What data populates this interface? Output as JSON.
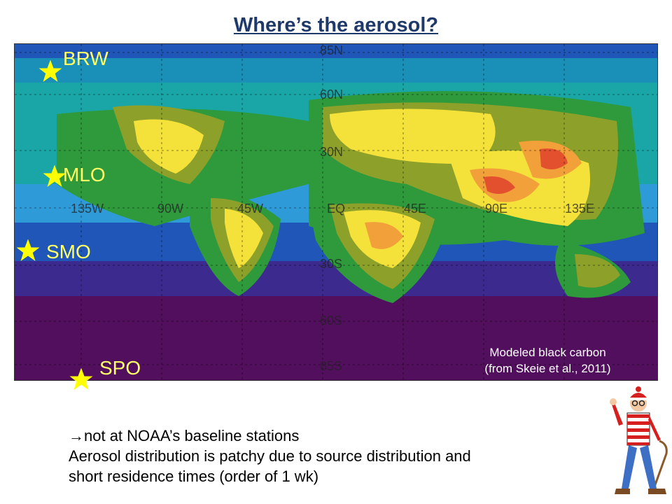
{
  "slide": {
    "title": "Where’s the aerosol?",
    "map": {
      "stations": [
        {
          "label": "BRW"
        },
        {
          "label": "MLO"
        },
        {
          "label": "SMO"
        },
        {
          "label": "SPO"
        }
      ],
      "lat_labels": [
        "85N",
        "60N",
        "30N",
        "EQ",
        "30S",
        "60S",
        "85S"
      ],
      "lon_labels": [
        "135W",
        "90W",
        "45W",
        "EQ",
        "45E",
        "90E",
        "135E"
      ],
      "credit_line1": "Modeled black carbon",
      "credit_line2": "(from Skeie et al., 2011)",
      "colors": {
        "low": "#520f5e",
        "purple": "#3d2a8f",
        "blue": "#1f56b8",
        "light_blue": "#2e9ad8",
        "teal": "#1aa6a6",
        "green": "#2e9a3c",
        "olive": "#8ca02a",
        "yellow": "#f4e23a",
        "orange": "#f2a03a",
        "red": "#e2502e",
        "station_star": "#ffff00"
      }
    },
    "body": {
      "line1": "→not at NOAA’s baseline stations",
      "line2": "Aerosol distribution is patchy due to source distribution and",
      "line3": "short residence times (order of 1 wk)"
    }
  }
}
